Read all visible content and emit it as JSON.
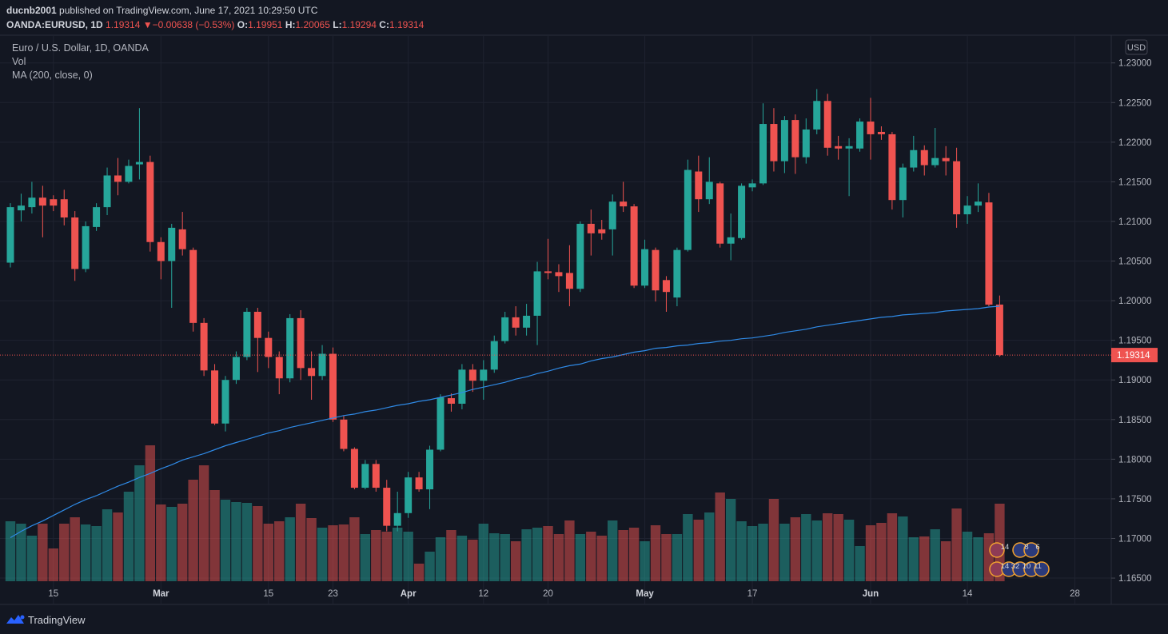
{
  "header": {
    "user": "ducnb2001",
    "published": "published on TradingView.com, June 17, 2021 10:29:50 UTC",
    "symbol": "OANDA:EURUSD, 1D",
    "arrow": "▼",
    "change": "−0.00638 (−0.53%)",
    "o": "O:",
    "h": "H:",
    "l": "L:",
    "c": "C:"
  },
  "legend": {
    "title": "Euro / U.S. Dollar, 1D, OANDA"
  },
  "currency": "USD",
  "events": {
    "row1": [
      "14",
      "8",
      "6"
    ],
    "row2": [
      "14",
      "32",
      "10",
      "11"
    ]
  },
  "footer": {
    "brand": "TradingView"
  },
  "chart_data": {
    "type": "candlestick",
    "up_color": "#26a69a",
    "down_color": "#ef5350",
    "ylim": [
      1.1643,
      1.2334
    ],
    "yticks": [
      {
        "value": 1.165,
        "label": "1.16500"
      },
      {
        "value": 1.17,
        "label": "1.17000"
      },
      {
        "value": 1.175,
        "label": "1.17500"
      },
      {
        "value": 1.18,
        "label": "1.18000"
      },
      {
        "value": 1.185,
        "label": "1.18500"
      },
      {
        "value": 1.19,
        "label": "1.19000"
      },
      {
        "value": 1.195,
        "label": "1.19500"
      },
      {
        "value": 1.2,
        "label": "1.20000"
      },
      {
        "value": 1.205,
        "label": "1.20500"
      },
      {
        "value": 1.21,
        "label": "1.21000"
      },
      {
        "value": 1.215,
        "label": "1.21500"
      },
      {
        "value": 1.22,
        "label": "1.22000"
      },
      {
        "value": 1.225,
        "label": "1.22500"
      },
      {
        "value": 1.23,
        "label": "1.23000"
      }
    ],
    "grid": true,
    "categories": [
      null,
      null,
      null,
      null,
      "15",
      null,
      null,
      null,
      null,
      null,
      null,
      null,
      null,
      null,
      "Mar",
      null,
      null,
      null,
      null,
      null,
      null,
      null,
      null,
      null,
      "15",
      null,
      null,
      null,
      null,
      null,
      "23",
      null,
      null,
      null,
      null,
      null,
      null,
      "Apr",
      null,
      null,
      null,
      null,
      null,
      null,
      "12",
      null,
      null,
      null,
      null,
      null,
      "20",
      null,
      null,
      null,
      null,
      null,
      null,
      null,
      null,
      "May",
      null,
      null,
      null,
      null,
      null,
      null,
      null,
      null,
      null,
      "17",
      null,
      null,
      null,
      null,
      null,
      null,
      null,
      null,
      null,
      null,
      "Jun",
      null,
      null,
      null,
      null,
      null,
      null,
      null,
      null,
      "14",
      null,
      null,
      null,
      null,
      null,
      null,
      null,
      null,
      null,
      "28"
    ],
    "open": [
      1.2048,
      1.2114,
      1.2118,
      1.213,
      1.2128,
      1.2128,
      1.2105,
      1.204,
      1.2093,
      1.2118,
      1.2158,
      1.215,
      1.2172,
      1.2175,
      1.2074,
      1.205,
      1.209,
      1.2064,
      1.1972,
      1.1912,
      1.1845,
      1.19,
      1.1929,
      1.1986,
      1.1953,
      1.1929,
      1.1902,
      1.1978,
      1.1915,
      1.1905,
      1.1933,
      1.185,
      1.1813,
      1.1764,
      1.1794,
      1.1764,
      1.1716,
      1.1732,
      1.1777,
      1.1762,
      1.1812,
      1.1877,
      1.187,
      1.1913,
      1.1899,
      1.1913,
      1.1949,
      1.1979,
      1.1966,
      1.1981,
      1.2037,
      1.2036,
      1.2035,
      1.2015,
      1.2097,
      1.209,
      1.209,
      1.2125,
      1.2119,
      1.2019,
      1.2064,
      1.2026,
      1.2004,
      1.2064,
      1.2163,
      1.2128,
      1.2148,
      1.2072,
      1.2079,
      1.2143,
      1.2148,
      1.2223,
      1.2176,
      1.2228,
      1.2181,
      1.2216,
      1.2252,
      1.2195,
      1.2192,
      1.2192,
      1.2226,
      1.2213,
      1.221,
      1.2127,
      1.2168,
      1.219,
      1.2171,
      1.218,
      1.2176,
      1.2109,
      1.212,
      1.2124,
      1.19951,
      null,
      null,
      null,
      null,
      null,
      null,
      null
    ],
    "high": [
      1.2123,
      1.2135,
      1.215,
      1.2145,
      1.2133,
      1.214,
      1.2113,
      1.21,
      1.2123,
      1.2168,
      1.218,
      1.2178,
      1.2243,
      1.2183,
      1.208,
      1.2097,
      1.2112,
      1.2067,
      1.1978,
      1.192,
      1.1905,
      1.1936,
      1.1991,
      1.1991,
      1.1961,
      1.1936,
      1.1983,
      1.1988,
      1.1936,
      1.1944,
      1.1941,
      1.1855,
      1.1815,
      1.1799,
      1.1799,
      1.1774,
      1.1759,
      1.1784,
      1.1784,
      1.1817,
      1.1882,
      1.1883,
      1.192,
      1.192,
      1.1925,
      1.1956,
      1.1986,
      1.1993,
      1.1996,
      1.2049,
      1.2078,
      1.2046,
      1.207,
      1.21,
      1.2115,
      1.2102,
      1.2134,
      1.215,
      1.2122,
      1.2077,
      1.2067,
      1.2031,
      1.2067,
      1.2178,
      1.2183,
      1.2181,
      1.215,
      1.211,
      1.2148,
      1.2153,
      1.2249,
      1.2243,
      1.2233,
      1.2235,
      1.223,
      1.2267,
      1.2261,
      1.2208,
      1.2205,
      1.223,
      1.2256,
      1.222,
      1.2213,
      1.2173,
      1.2208,
      1.2196,
      1.2218,
      1.2195,
      1.2193,
      1.2132,
      1.2148,
      1.2136,
      1.20065,
      null,
      null,
      null,
      null,
      null,
      null,
      null
    ],
    "low": [
      1.2042,
      1.21,
      1.211,
      1.208,
      1.2113,
      1.2095,
      1.2025,
      1.2036,
      1.2088,
      1.2108,
      1.2133,
      1.2148,
      1.2153,
      1.2062,
      1.2027,
      1.1991,
      1.2057,
      1.1961,
      1.1905,
      1.1843,
      1.1835,
      1.1895,
      1.1925,
      1.191,
      1.1915,
      1.1882,
      1.1897,
      1.19,
      1.1875,
      1.19,
      1.1847,
      1.181,
      1.1762,
      1.1762,
      1.1759,
      1.1709,
      1.1709,
      1.1726,
      1.1759,
      1.1737,
      1.181,
      1.186,
      1.1863,
      1.1885,
      1.1875,
      1.1909,
      1.1946,
      1.1956,
      1.1956,
      1.1944,
      1.2027,
      1.2011,
      1.1993,
      1.2011,
      1.2057,
      1.2077,
      1.2057,
      1.2112,
      1.2016,
      1.2016,
      1.1999,
      1.1986,
      1.1993,
      1.2062,
      1.2112,
      1.2122,
      1.2067,
      1.2051,
      1.2077,
      1.2138,
      1.2146,
      1.2163,
      1.2161,
      1.216,
      1.2173,
      1.221,
      1.2183,
      1.2178,
      1.2132,
      1.2188,
      1.2178,
      1.2203,
      1.2115,
      1.2105,
      1.2163,
      1.2158,
      1.2168,
      1.2158,
      1.2092,
      1.2097,
      1.2112,
      1.1993,
      1.19294,
      null,
      null,
      null,
      null,
      null,
      null,
      null
    ],
    "close": [
      1.2118,
      1.212,
      1.213,
      1.212,
      1.212,
      1.2105,
      1.204,
      1.2094,
      1.2118,
      1.2158,
      1.215,
      1.217,
      1.2175,
      1.2074,
      1.205,
      1.2092,
      1.2065,
      1.1972,
      1.1912,
      1.1845,
      1.19,
      1.1929,
      1.1986,
      1.1953,
      1.1929,
      1.1902,
      1.1978,
      1.1915,
      1.1905,
      1.1933,
      1.185,
      1.1813,
      1.1764,
      1.1794,
      1.1764,
      1.1716,
      1.1732,
      1.1777,
      1.1762,
      1.1812,
      1.1878,
      1.187,
      1.1913,
      1.1899,
      1.1913,
      1.1949,
      1.1979,
      1.1966,
      1.1981,
      1.2037,
      1.2035,
      1.2031,
      1.2015,
      1.2097,
      1.2085,
      1.2085,
      1.2125,
      1.2119,
      1.2019,
      1.2065,
      1.2013,
      1.2011,
      1.2064,
      1.2165,
      1.2128,
      1.215,
      1.2072,
      1.208,
      1.2145,
      1.2148,
      1.2223,
      1.2176,
      1.2228,
      1.2181,
      1.2216,
      1.2252,
      1.2193,
      1.2192,
      1.2195,
      1.2226,
      1.221,
      1.221,
      1.2127,
      1.2168,
      1.219,
      1.2171,
      1.218,
      1.2176,
      1.2109,
      1.212,
      1.2125,
      1.1995,
      1.19314,
      null,
      null,
      null,
      null,
      null,
      null,
      null
    ],
    "volume": {
      "name": "Vol",
      "values": [
        75,
        72,
        57,
        72,
        41,
        72,
        80,
        71,
        69,
        90,
        86,
        112,
        145,
        170,
        96,
        93,
        97,
        127,
        145,
        114,
        102,
        99,
        98,
        94,
        72,
        75,
        80,
        97,
        79,
        67,
        70,
        71,
        80,
        59,
        64,
        62,
        67,
        62,
        22,
        37,
        55,
        64,
        57,
        52,
        72,
        60,
        59,
        50,
        65,
        67,
        69,
        59,
        76,
        59,
        62,
        57,
        76,
        64,
        67,
        50,
        70,
        59,
        59,
        84,
        77,
        86,
        111,
        103,
        75,
        69,
        72,
        103,
        72,
        80,
        84,
        76,
        85,
        84,
        77,
        44,
        70,
        73,
        85,
        81,
        55,
        56,
        65,
        50,
        91,
        62,
        55,
        60,
        97,
        null,
        null,
        null,
        null,
        null,
        null,
        null
      ]
    },
    "ma": {
      "name": "MA (200, close, 0)",
      "color": "#2f8ae6",
      "values": [
        1.1701,
        1.1709,
        1.1716,
        1.1722,
        1.1729,
        1.1736,
        1.1743,
        1.1749,
        1.1754,
        1.176,
        1.1766,
        1.1771,
        1.1777,
        1.1782,
        1.1788,
        1.1793,
        1.1799,
        1.1803,
        1.1807,
        1.1812,
        1.1817,
        1.1821,
        1.1825,
        1.1829,
        1.1833,
        1.1836,
        1.184,
        1.1843,
        1.1846,
        1.1849,
        1.1852,
        1.1855,
        1.1857,
        1.186,
        1.1862,
        1.1865,
        1.1868,
        1.187,
        1.1873,
        1.1875,
        1.1878,
        1.1881,
        1.1884,
        1.1888,
        1.1891,
        1.1894,
        1.1897,
        1.1901,
        1.1904,
        1.1908,
        1.1911,
        1.1915,
        1.1918,
        1.192,
        1.1924,
        1.1927,
        1.1929,
        1.1932,
        1.1935,
        1.1937,
        1.194,
        1.1941,
        1.1943,
        1.1944,
        1.1946,
        1.1947,
        1.1949,
        1.195,
        1.1952,
        1.1953,
        1.1955,
        1.1957,
        1.196,
        1.1962,
        1.1964,
        1.1967,
        1.1969,
        1.1971,
        1.1973,
        1.1975,
        1.1977,
        1.1979,
        1.198,
        1.1982,
        1.1983,
        1.1984,
        1.1985,
        1.1987,
        1.1988,
        1.1989,
        1.199,
        1.1992,
        1.1993,
        null,
        null,
        null,
        null,
        null,
        null,
        null
      ]
    }
  }
}
